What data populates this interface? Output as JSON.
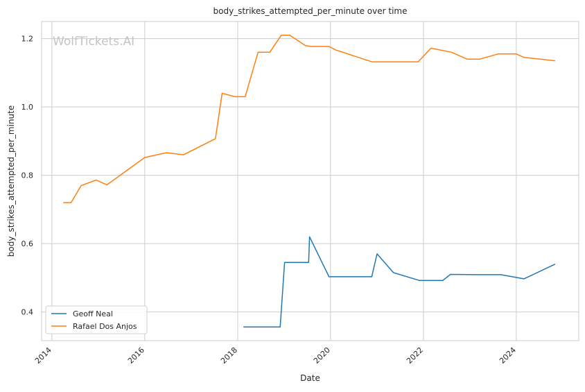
{
  "chart_data": {
    "type": "line",
    "title": "body_strikes_attempted_per_minute over time",
    "xlabel": "Date",
    "ylabel": "body_strikes_attempted_per_minute",
    "watermark": "WolfTickets.AI",
    "xlim": [
      "2013-10-12",
      "2025-05-06"
    ],
    "ylim": [
      0.316,
      1.25
    ],
    "x_ticks": [
      "2014",
      "2016",
      "2018",
      "2020",
      "2022",
      "2024"
    ],
    "y_ticks": [
      "0.4",
      "0.6",
      "0.8",
      "1.0",
      "1.2"
    ],
    "grid": true,
    "legend_position": "bottom-left",
    "series": [
      {
        "name": "Geoff Neal",
        "color": "#1f77b4",
        "x": [
          "2018-02-15",
          "2018-12-01",
          "2019-01-05",
          "2019-07-13",
          "2019-07-20",
          "2019-12-20",
          "2020-11-20",
          "2021-01-01",
          "2021-05-10",
          "2021-12-01",
          "2022-06-01",
          "2022-08-01",
          "2023-03-01",
          "2023-09-01",
          "2024-03-01",
          "2024-11-01"
        ],
        "values": [
          0.356,
          0.356,
          0.545,
          0.545,
          0.62,
          0.503,
          0.503,
          0.57,
          0.515,
          0.492,
          0.492,
          0.51,
          0.509,
          0.509,
          0.497,
          0.54
        ]
      },
      {
        "name": "Rafael Dos Anjos",
        "color": "#ff7f0e",
        "x": [
          "2014-04-01",
          "2014-06-01",
          "2014-08-20",
          "2014-12-15",
          "2015-03-10",
          "2016-01-01",
          "2016-06-20",
          "2016-11-01",
          "2017-07-10",
          "2017-09-01",
          "2017-12-10",
          "2018-03-01",
          "2018-06-10",
          "2018-09-10",
          "2018-12-10",
          "2019-02-15",
          "2019-06-15",
          "2019-08-01",
          "2019-12-20",
          "2020-02-10",
          "2020-11-20",
          "2021-11-20",
          "2022-03-01",
          "2022-08-10",
          "2022-12-10",
          "2023-03-20",
          "2023-08-10",
          "2024-01-01",
          "2024-03-01",
          "2024-11-01"
        ],
        "values": [
          0.72,
          0.72,
          0.77,
          0.786,
          0.772,
          0.852,
          0.866,
          0.86,
          0.907,
          1.04,
          1.03,
          1.03,
          1.16,
          1.16,
          1.21,
          1.21,
          1.18,
          1.177,
          1.177,
          1.167,
          1.132,
          1.132,
          1.172,
          1.16,
          1.14,
          1.14,
          1.155,
          1.155,
          1.145,
          1.135
        ]
      }
    ]
  }
}
